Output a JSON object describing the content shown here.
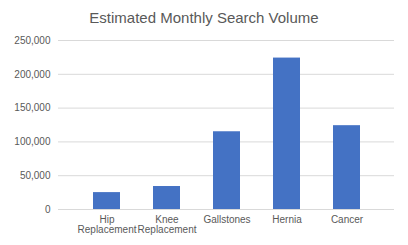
{
  "chart_data": {
    "type": "bar",
    "title": "Estimated Monthly Search Volume",
    "categories": [
      "Hip Replacement",
      "Knee Replacement",
      "Gallstones",
      "Hernia",
      "Cancer"
    ],
    "values": [
      25000,
      34000,
      115000,
      224000,
      124000
    ],
    "color": "#4472c4",
    "ylim": [
      0,
      250000
    ],
    "yticks": [
      0,
      {
        "value": 50000,
        "label": "50,000"
      },
      {
        "value": 100000,
        "label": "100,000"
      },
      {
        "value": 150000,
        "label": "150,000"
      },
      {
        "value": 200000,
        "label": "200,000"
      },
      {
        "value": 250000,
        "label": "250,000"
      }
    ],
    "grid": true
  }
}
